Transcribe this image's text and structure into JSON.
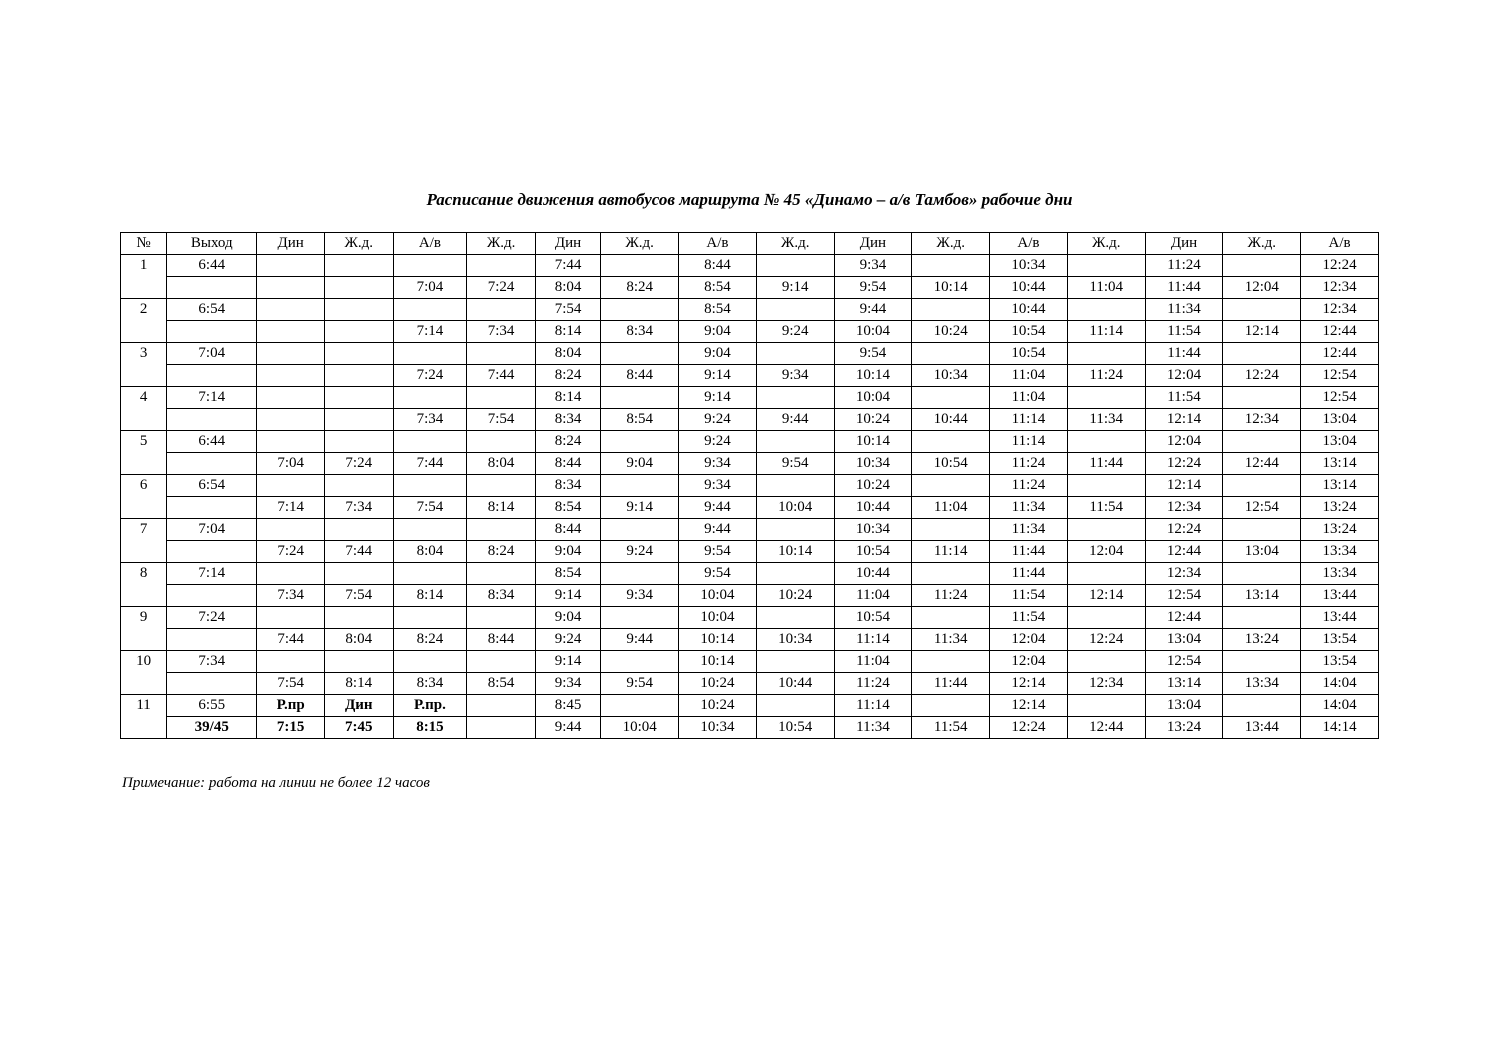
{
  "title": "Расписание движения автобусов маршрута № 45 «Динамо – а/в Тамбов»  рабочие дни",
  "footnote": "Примечание: работа на линии не более 12 часов",
  "columns": [
    "№",
    "Выход",
    "Дин",
    "Ж.д.",
    "А/в",
    "Ж.д.",
    "Дин",
    "Ж.д.",
    "А/в",
    "Ж.д.",
    "Дин",
    "Ж.д.",
    "А/в",
    "Ж.д.",
    "Дин",
    "Ж.д.",
    "А/в"
  ],
  "groups": [
    {
      "num": "1",
      "r1": [
        "6:44",
        "",
        "",
        "",
        "",
        "7:44",
        "",
        "8:44",
        "",
        "9:34",
        "",
        "10:34",
        "",
        "11:24",
        "",
        "12:24"
      ],
      "r2": [
        "",
        "",
        "",
        "7:04",
        "7:24",
        "8:04",
        "8:24",
        "8:54",
        "9:14",
        "9:54",
        "10:14",
        "10:44",
        "11:04",
        "11:44",
        "12:04",
        "12:34"
      ]
    },
    {
      "num": "2",
      "r1": [
        "6:54",
        "",
        "",
        "",
        "",
        "7:54",
        "",
        "8:54",
        "",
        "9:44",
        "",
        "10:44",
        "",
        "11:34",
        "",
        "12:34"
      ],
      "r2": [
        "",
        "",
        "",
        "7:14",
        "7:34",
        "8:14",
        "8:34",
        "9:04",
        "9:24",
        "10:04",
        "10:24",
        "10:54",
        "11:14",
        "11:54",
        "12:14",
        "12:44"
      ]
    },
    {
      "num": "3",
      "r1": [
        "7:04",
        "",
        "",
        "",
        "",
        "8:04",
        "",
        "9:04",
        "",
        "9:54",
        "",
        "10:54",
        "",
        "11:44",
        "",
        "12:44"
      ],
      "r2": [
        "",
        "",
        "",
        "7:24",
        "7:44",
        "8:24",
        "8:44",
        "9:14",
        "9:34",
        "10:14",
        "10:34",
        "11:04",
        "11:24",
        "12:04",
        "12:24",
        "12:54"
      ]
    },
    {
      "num": "4",
      "r1": [
        "7:14",
        "",
        "",
        "",
        "",
        "8:14",
        "",
        "9:14",
        "",
        "10:04",
        "",
        "11:04",
        "",
        "11:54",
        "",
        "12:54"
      ],
      "r2": [
        "",
        "",
        "",
        "7:34",
        "7:54",
        "8:34",
        "8:54",
        "9:24",
        "9:44",
        "10:24",
        "10:44",
        "11:14",
        "11:34",
        "12:14",
        "12:34",
        "13:04"
      ]
    },
    {
      "num": "5",
      "r1": [
        "6:44",
        "",
        "",
        "",
        "",
        "8:24",
        "",
        "9:24",
        "",
        "10:14",
        "",
        "11:14",
        "",
        "12:04",
        "",
        "13:04"
      ],
      "r2": [
        "",
        "7:04",
        "7:24",
        "7:44",
        "8:04",
        "8:44",
        "9:04",
        "9:34",
        "9:54",
        "10:34",
        "10:54",
        "11:24",
        "11:44",
        "12:24",
        "12:44",
        "13:14"
      ]
    },
    {
      "num": "6",
      "r1": [
        "6:54",
        "",
        "",
        "",
        "",
        "8:34",
        "",
        "9:34",
        "",
        "10:24",
        "",
        "11:24",
        "",
        "12:14",
        "",
        "13:14"
      ],
      "r2": [
        "",
        "7:14",
        "7:34",
        "7:54",
        "8:14",
        "8:54",
        "9:14",
        "9:44",
        "10:04",
        "10:44",
        "11:04",
        "11:34",
        "11:54",
        "12:34",
        "12:54",
        "13:24"
      ]
    },
    {
      "num": "7",
      "r1": [
        "7:04",
        "",
        "",
        "",
        "",
        "8:44",
        "",
        "9:44",
        "",
        "10:34",
        "",
        "11:34",
        "",
        "12:24",
        "",
        "13:24"
      ],
      "r2": [
        "",
        "7:24",
        "7:44",
        "8:04",
        "8:24",
        "9:04",
        "9:24",
        "9:54",
        "10:14",
        "10:54",
        "11:14",
        "11:44",
        "12:04",
        "12:44",
        "13:04",
        "13:34"
      ]
    },
    {
      "num": "8",
      "r1": [
        "7:14",
        "",
        "",
        "",
        "",
        "8:54",
        "",
        "9:54",
        "",
        "10:44",
        "",
        "11:44",
        "",
        "12:34",
        "",
        "13:34"
      ],
      "r2": [
        "",
        "7:34",
        "7:54",
        "8:14",
        "8:34",
        "9:14",
        "9:34",
        "10:04",
        "10:24",
        "11:04",
        "11:24",
        "11:54",
        "12:14",
        "12:54",
        "13:14",
        "13:44"
      ]
    },
    {
      "num": "9",
      "r1": [
        "7:24",
        "",
        "",
        "",
        "",
        "9:04",
        "",
        "10:04",
        "",
        "10:54",
        "",
        "11:54",
        "",
        "12:44",
        "",
        "13:44"
      ],
      "r2": [
        "",
        "7:44",
        "8:04",
        "8:24",
        "8:44",
        "9:24",
        "9:44",
        "10:14",
        "10:34",
        "11:14",
        "11:34",
        "12:04",
        "12:24",
        "13:04",
        "13:24",
        "13:54"
      ]
    },
    {
      "num": "10",
      "r1": [
        "7:34",
        "",
        "",
        "",
        "",
        "9:14",
        "",
        "10:14",
        "",
        "11:04",
        "",
        "12:04",
        "",
        "12:54",
        "",
        "13:54"
      ],
      "r2": [
        "",
        "7:54",
        "8:14",
        "8:34",
        "8:54",
        "9:34",
        "9:54",
        "10:24",
        "10:44",
        "11:24",
        "11:44",
        "12:14",
        "12:34",
        "13:14",
        "13:34",
        "14:04"
      ]
    },
    {
      "num": "11",
      "r1": [
        "6:55",
        "Р.пр",
        "Дин",
        "Р.пр.",
        "",
        "8:45",
        "",
        "10:24",
        "",
        "11:14",
        "",
        "12:14",
        "",
        "13:04",
        "",
        "14:04"
      ],
      "r2": [
        "39/45",
        "7:15",
        "7:45",
        "8:15",
        "",
        "9:44",
        "10:04",
        "10:34",
        "10:54",
        "11:34",
        "11:54",
        "12:24",
        "12:44",
        "13:24",
        "13:44",
        "14:14"
      ]
    }
  ],
  "boldCells": {
    "10": {
      "r1": [
        1,
        2,
        3
      ],
      "r2": [
        0,
        1,
        2,
        3
      ]
    }
  },
  "style": {
    "fontSize": 15,
    "titleFontSize": 17,
    "background": "#ffffff",
    "borderColor": "#000000",
    "textColor": "#000000"
  }
}
